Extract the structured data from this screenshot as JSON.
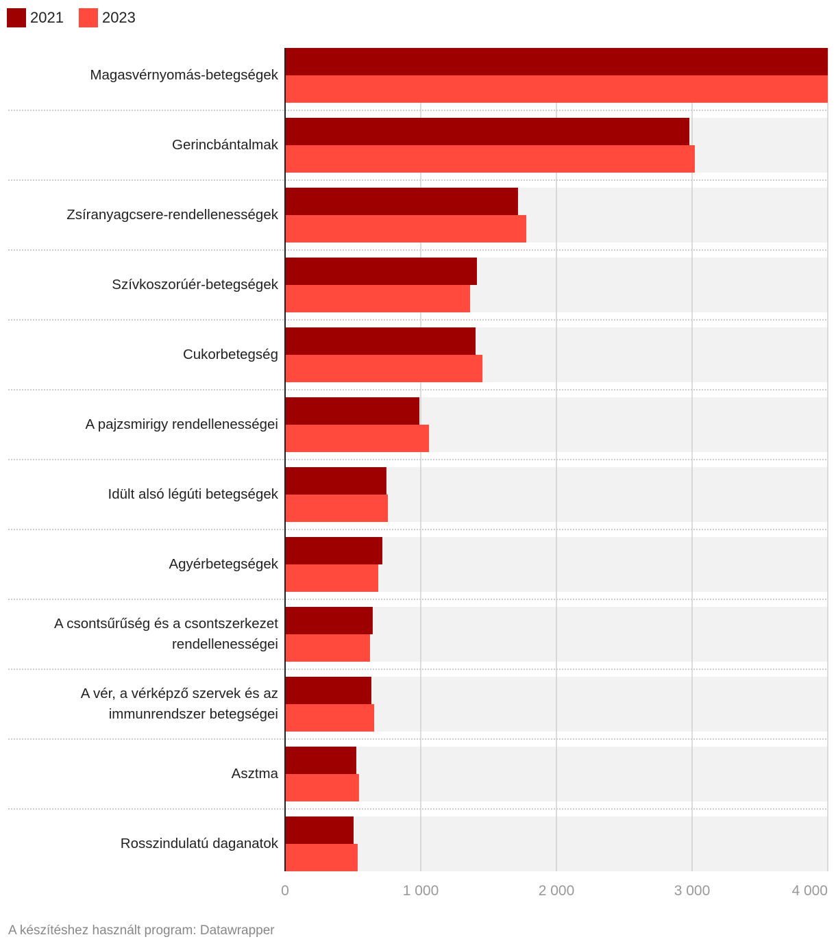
{
  "chart_data": {
    "type": "bar",
    "orientation": "horizontal",
    "categories": [
      "Magasvérnyomás-betegségek",
      "Gerincbántalmak",
      "Zsíranyagcsere-rendellenességek",
      "Szívkoszorúér-betegségek",
      "Cukorbetegség",
      "A pajzsmirigy rendellenességei",
      "Idült alsó légúti betegségek",
      "Agyérbetegségek",
      "A csontsűrűség és a csontszerkezet rendellenességei",
      "A vér, a vérképző szervek és az immunrendszer betegségei",
      "Asztma",
      "Rosszindulatú daganatok"
    ],
    "series": [
      {
        "name": "2021",
        "color": "#9e0000",
        "values": [
          4000,
          2980,
          1717,
          1414,
          1404,
          990,
          747,
          717,
          646,
          636,
          525,
          505
        ]
      },
      {
        "name": "2023",
        "color": "#ff4a3d",
        "values": [
          4000,
          3020,
          1778,
          1364,
          1455,
          1061,
          758,
          687,
          626,
          657,
          545,
          535
        ]
      }
    ],
    "xlim": [
      0,
      4000
    ],
    "xticks": [
      0,
      {
        "value": 1000,
        "label": "1 000"
      },
      {
        "value": 2000,
        "label": "2 000"
      },
      {
        "value": 3000,
        "label": "3 000"
      },
      {
        "value": 4000,
        "label": "4 000"
      }
    ],
    "grid": true,
    "source": "A készítéshez használt program: Datawrapper"
  }
}
